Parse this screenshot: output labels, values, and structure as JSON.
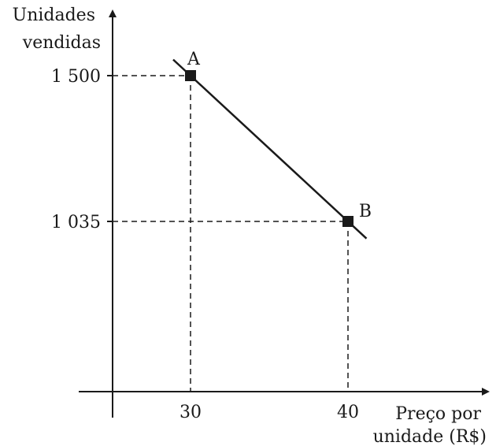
{
  "chart_data": {
    "type": "line",
    "title": "",
    "ylabel_lines": [
      "Unidades",
      "vendidas"
    ],
    "xlabel_lines": [
      "Preço por",
      "unidade (R$)"
    ],
    "x_ticks": [
      30,
      40
    ],
    "x_tick_labels": [
      "30",
      "40"
    ],
    "y_ticks": [
      1500,
      1035
    ],
    "y_tick_labels": [
      "1 500",
      "1 035"
    ],
    "series": [
      {
        "points": [
          {
            "label": "A",
            "x": 30,
            "y": 1500
          },
          {
            "label": "B",
            "x": 40,
            "y": 1035
          }
        ]
      }
    ],
    "grid": false,
    "legend": "none"
  },
  "colors": {
    "ink": "#1a1a1a"
  }
}
